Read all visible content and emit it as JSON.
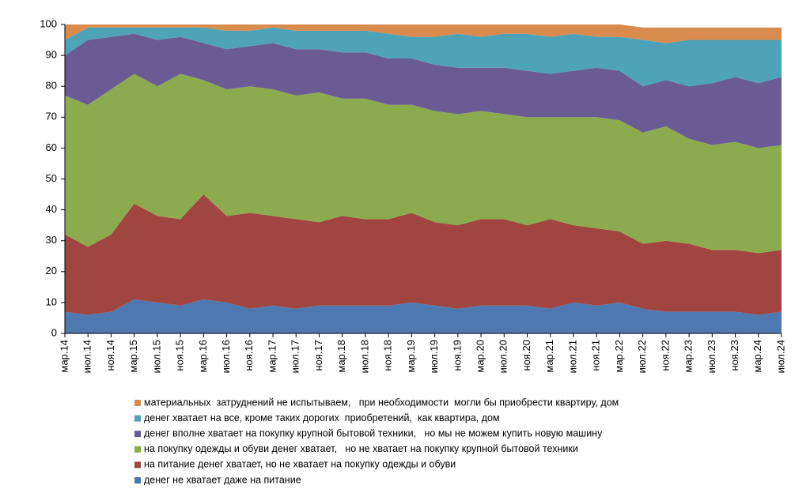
{
  "chart_data": {
    "type": "stacked_area",
    "categories": [
      "мар.14",
      "июл.14",
      "ноя.14",
      "мар.15",
      "июл.15",
      "ноя.15",
      "мар.16",
      "июл.16",
      "ноя.16",
      "мар.17",
      "июл.17",
      "ноя.17",
      "мар.18",
      "июл.18",
      "ноя.18",
      "мар.19",
      "июл.19",
      "ноя.19",
      "мар.20",
      "июл.20",
      "ноя.20",
      "мар.21",
      "июл.21",
      "ноя.21",
      "мар.22",
      "июл.22",
      "ноя.22",
      "мар.23",
      "июл.23",
      "ноя.23",
      "мар.24",
      "июл.24"
    ],
    "series": [
      {
        "name": "материальных  затруднений не испытываем,   при необходимости  могли бы приобрести квартиру, дом",
        "color": "#d98b4d",
        "values": [
          5,
          1,
          1,
          1,
          1,
          1,
          1,
          2,
          2,
          1,
          2,
          2,
          2,
          2,
          3,
          4,
          4,
          3,
          4,
          3,
          3,
          4,
          3,
          4,
          4,
          4,
          5,
          4,
          4,
          4,
          4,
          4
        ]
      },
      {
        "name": "денег хватает на все, кроме таких дорогих  приобретений,  как квартира, дом",
        "color": "#4fa3b8",
        "values": [
          5,
          4,
          3,
          2,
          4,
          3,
          5,
          6,
          5,
          5,
          6,
          6,
          7,
          7,
          8,
          7,
          9,
          11,
          10,
          11,
          12,
          12,
          12,
          10,
          11,
          15,
          12,
          15,
          14,
          12,
          14,
          12
        ]
      },
      {
        "name": "денег вполне хватает на покупку крупной бытовой техники,   но мы не можем купить новую машину",
        "color": "#6b5b95",
        "values": [
          13,
          21,
          17,
          13,
          15,
          12,
          12,
          13,
          13,
          15,
          15,
          14,
          15,
          15,
          15,
          15,
          15,
          15,
          14,
          15,
          15,
          14,
          15,
          16,
          16,
          15,
          15,
          17,
          20,
          21,
          21,
          22
        ]
      },
      {
        "name": "на покупку одежды и обуви денег хватает,   но не хватает на покупку крупной бытовой техники",
        "color": "#8bab4e",
        "values": [
          45,
          46,
          47,
          42,
          42,
          47,
          37,
          41,
          41,
          41,
          40,
          42,
          38,
          39,
          37,
          35,
          36,
          36,
          35,
          34,
          35,
          33,
          35,
          36,
          36,
          36,
          37,
          34,
          34,
          35,
          34,
          34
        ]
      },
      {
        "name": "на питание денег хватает, но не хватает на покупку одежды и обуви",
        "color": "#a0453f",
        "values": [
          25,
          22,
          25,
          31,
          28,
          28,
          34,
          28,
          31,
          29,
          29,
          27,
          29,
          28,
          28,
          29,
          27,
          27,
          28,
          28,
          26,
          29,
          25,
          25,
          23,
          21,
          23,
          22,
          20,
          20,
          20,
          20
        ]
      },
      {
        "name": "денег не хватает даже на питание",
        "color": "#4e79b0",
        "values": [
          7,
          6,
          7,
          11,
          10,
          9,
          11,
          10,
          8,
          9,
          8,
          9,
          9,
          9,
          9,
          10,
          9,
          8,
          9,
          9,
          9,
          8,
          10,
          9,
          10,
          8,
          7,
          7,
          7,
          7,
          6,
          7
        ]
      }
    ],
    "ylim": [
      0,
      100
    ],
    "yticks": [
      0,
      10,
      20,
      30,
      40,
      50,
      60,
      70,
      80,
      90,
      100
    ]
  }
}
